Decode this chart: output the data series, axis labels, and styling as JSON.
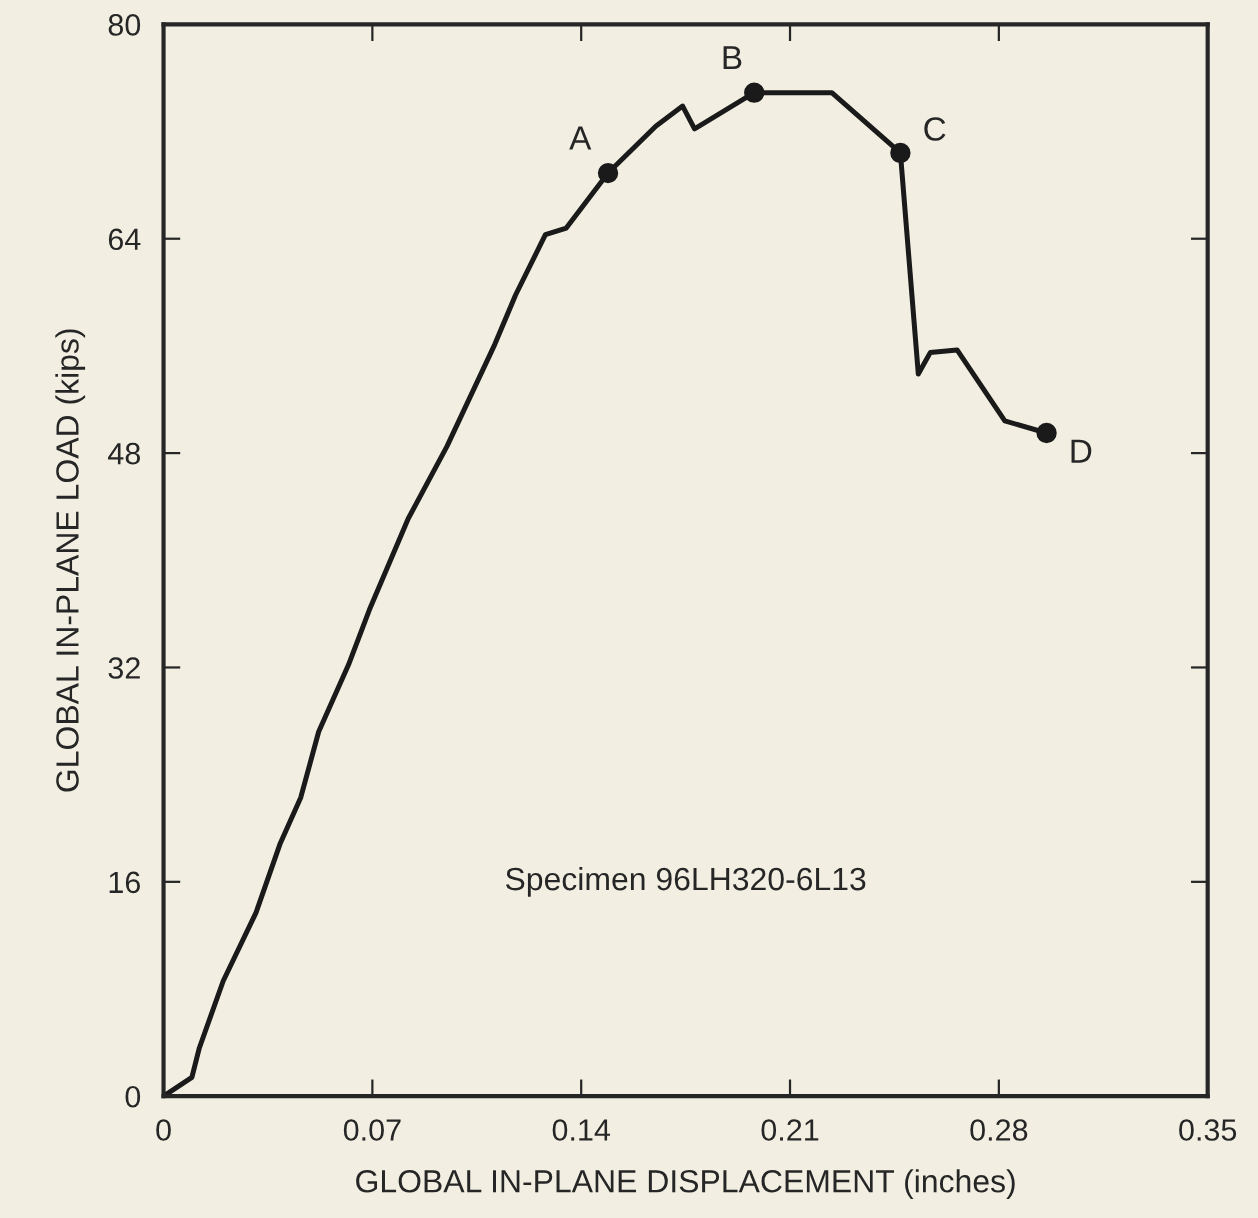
{
  "chart_data": {
    "type": "line",
    "xlabel": "GLOBAL IN-PLANE DISPLACEMENT (inches)",
    "ylabel": "GLOBAL IN-PLANE LOAD (kips)",
    "xlim": [
      0,
      0.35
    ],
    "xticks": [
      0,
      0.07,
      0.14,
      0.21,
      0.28,
      0.35
    ],
    "ylim": [
      0,
      80
    ],
    "yticks": [
      0,
      16,
      32,
      48,
      64,
      80
    ],
    "grid": false,
    "legend": false,
    "series": [
      {
        "color": "#1a1a1a",
        "marker": "none",
        "line_style": "solid",
        "x": [
          0,
          0.0095,
          0.012,
          0.02,
          0.031,
          0.039,
          0.046,
          0.052,
          0.062,
          0.069,
          0.082,
          0.095,
          0.111,
          0.118,
          0.128,
          0.135,
          0.149,
          0.165,
          0.174,
          0.178,
          0.198,
          0.224,
          0.247,
          0.253,
          0.257,
          0.266,
          0.282,
          0.296
        ],
        "values": [
          0,
          1.4,
          3.6,
          8.6,
          13.7,
          18.8,
          22.3,
          27.2,
          32.2,
          36.3,
          43.1,
          48.5,
          56.1,
          59.8,
          64.3,
          64.8,
          68.9,
          72.4,
          73.9,
          72.2,
          74.9,
          74.9,
          70.4,
          53.9,
          55.5,
          55.7,
          50.4,
          49.5
        ]
      },
      {
        "type": "scatter",
        "color": "#1a1a1a",
        "marker": "circle",
        "x": [
          0.149,
          0.198,
          0.247,
          0.296
        ],
        "values": [
          68.9,
          74.9,
          70.4,
          49.5
        ]
      }
    ],
    "annotations": [
      {
        "text": "A",
        "x": 0.149,
        "y": 68.9
      },
      {
        "text": "B",
        "x": 0.198,
        "y": 74.9
      },
      {
        "text": "C",
        "x": 0.247,
        "y": 70.4
      },
      {
        "text": "D",
        "x": 0.296,
        "y": 49.5
      },
      "Specimen 96LH320-6L13"
    ]
  }
}
